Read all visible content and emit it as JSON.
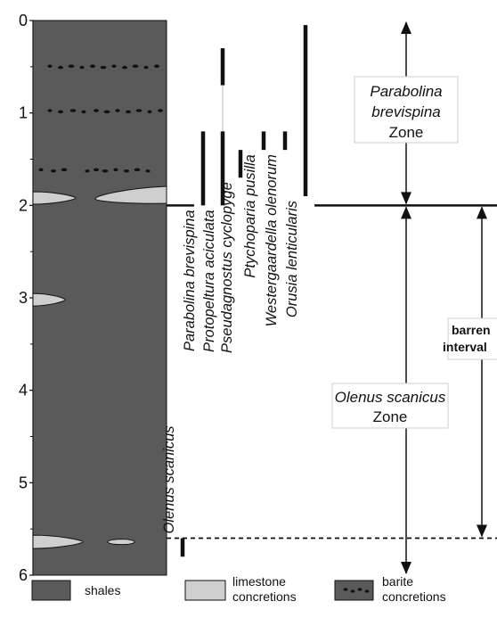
{
  "depth_axis": {
    "min": 0,
    "max": 6,
    "ticks": [
      "0",
      "1",
      "2",
      "3",
      "4",
      "5",
      "6"
    ]
  },
  "lithology": {
    "column_color": "#5a5a5a",
    "limestone_color": "#cfcfcf",
    "barite_rows_depth": [
      0.5,
      0.98,
      1.62
    ],
    "limestone_concretions": [
      {
        "depth": 1.92,
        "from": "left"
      },
      {
        "depth": 1.92,
        "from": "right"
      },
      {
        "depth": 3.02,
        "from": "left"
      },
      {
        "depth": 5.64,
        "from": "left"
      },
      {
        "depth": 5.64,
        "from": "center"
      }
    ]
  },
  "taxa": [
    {
      "name": "Olenus scanicus",
      "range": [
        5.6,
        5.8
      ]
    },
    {
      "name": "Parabolina brevispina",
      "range": [
        1.2,
        2.0
      ]
    },
    {
      "name": "Protopeltura aciculata",
      "range": [
        0.3,
        2.0
      ],
      "gap": [
        0.7,
        1.2
      ]
    },
    {
      "name": "Pseudagnostus cyclopyge",
      "range": [
        1.4,
        1.7
      ]
    },
    {
      "name": "Ptychoparia pusilla",
      "range": [
        1.2,
        1.4
      ]
    },
    {
      "name": "Westergaardella olenorum",
      "range": [
        1.2,
        1.4
      ]
    },
    {
      "name": "Orusia lenticularis",
      "range": [
        0.05,
        1.9
      ]
    }
  ],
  "zones": [
    {
      "name": "Parabolina brevispina",
      "word": "Zone",
      "top": 0,
      "base": 2.0
    },
    {
      "name": "Olenus scanicus",
      "word": "Zone",
      "top": 2.0,
      "base": 6.0
    }
  ],
  "boundaries": {
    "zone_boundary_depth": 2.0,
    "dashed_line_depth": 5.6
  },
  "barren_interval": {
    "line1": "barren",
    "line2": "interval",
    "top": 2.0,
    "base": 5.6
  },
  "legend": [
    {
      "id": "shales",
      "label": "shales"
    },
    {
      "id": "limestone",
      "label": "limestone\nconcretions"
    },
    {
      "id": "barite",
      "label": "barite\nconcretions"
    }
  ]
}
